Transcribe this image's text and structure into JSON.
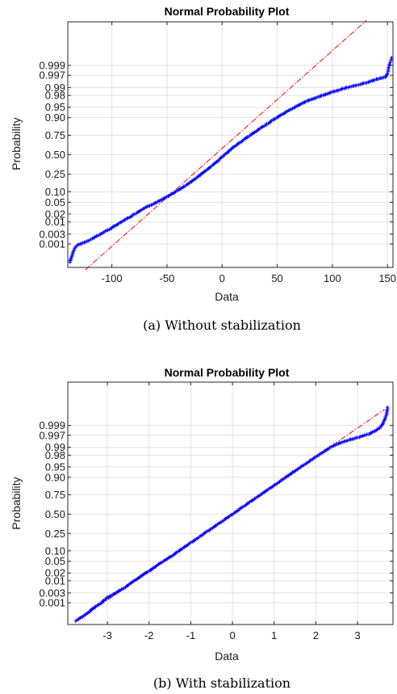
{
  "figures": [
    {
      "caption": "(a) Without stabilization",
      "chart_data": {
        "type": "scatter",
        "title": "Normal Probability Plot",
        "xlabel": "Data",
        "ylabel": "Probability",
        "xlim": [
          -140,
          155
        ],
        "x_ticks": [
          -100,
          -50,
          0,
          50,
          100,
          150
        ],
        "x_tick_labels": [
          "-100",
          "-50",
          "0",
          "50",
          "100",
          "150"
        ],
        "y_ticks": [
          0.001,
          0.003,
          0.01,
          0.02,
          0.05,
          0.1,
          0.25,
          0.5,
          0.75,
          0.9,
          0.95,
          0.98,
          0.99,
          0.997,
          0.999
        ],
        "y_tick_labels": [
          "0.001",
          "0.003",
          "0.01",
          "0.02",
          "0.05",
          "0.10",
          "0.25",
          "0.50",
          "0.75",
          "0.90",
          "0.95",
          "0.98",
          "0.99",
          "0.997",
          "0.999"
        ],
        "grid": true,
        "reference_line": {
          "x": [
            -124,
            131
          ],
          "y_z": [
            -3.98,
            4.65
          ]
        },
        "series": [
          {
            "points": [
              [
                -138,
                0.0001
              ],
              [
                -135,
                0.0004
              ],
              [
                -133,
                0.0007
              ],
              [
                -131,
                0.0009
              ],
              [
                -125,
                0.0012
              ],
              [
                -120,
                0.0016
              ],
              [
                -113,
                0.0025
              ],
              [
                -106,
                0.004
              ],
              [
                -98,
                0.0065
              ],
              [
                -90,
                0.011
              ],
              [
                -82,
                0.017
              ],
              [
                -75,
                0.025
              ],
              [
                -68,
                0.036
              ],
              [
                -58,
                0.052
              ],
              [
                -48,
                0.08
              ],
              [
                -40,
                0.11
              ],
              [
                -30,
                0.16
              ],
              [
                -20,
                0.24
              ],
              [
                -10,
                0.34
              ],
              [
                0,
                0.47
              ],
              [
                10,
                0.6
              ],
              [
                22,
                0.72
              ],
              [
                35,
                0.82
              ],
              [
                45,
                0.88
              ],
              [
                55,
                0.92
              ],
              [
                65,
                0.948
              ],
              [
                75,
                0.966
              ],
              [
                88,
                0.978
              ],
              [
                100,
                0.985
              ],
              [
                112,
                0.9895
              ],
              [
                125,
                0.9925
              ],
              [
                135,
                0.9945
              ],
              [
                142,
                0.9958
              ],
              [
                148,
                0.9964
              ],
              [
                150,
                0.9975
              ],
              [
                151,
                0.9985
              ],
              [
                152,
                0.9991
              ],
              [
                153,
                0.9994
              ],
              [
                154,
                0.9996
              ]
            ]
          }
        ]
      }
    },
    {
      "caption": "(b) With stabilization",
      "chart_data": {
        "type": "scatter",
        "title": "Normal Probability Plot",
        "xlabel": "Data",
        "ylabel": "Probability",
        "xlim": [
          -3.95,
          3.85
        ],
        "x_ticks": [
          -3,
          -2,
          -1,
          0,
          1,
          2,
          3
        ],
        "x_tick_labels": [
          "-3",
          "-2",
          "-1",
          "0",
          "1",
          "2",
          "3"
        ],
        "y_ticks": [
          0.001,
          0.003,
          0.01,
          0.02,
          0.05,
          0.1,
          0.25,
          0.5,
          0.75,
          0.9,
          0.95,
          0.98,
          0.99,
          0.997,
          0.999
        ],
        "y_tick_labels": [
          "0.001",
          "0.003",
          "0.01",
          "0.02",
          "0.05",
          "0.10",
          "0.25",
          "0.50",
          "0.75",
          "0.90",
          "0.95",
          "0.98",
          "0.99",
          "0.997",
          "0.999"
        ],
        "grid": true,
        "reference_line": {
          "x": [
            -3.78,
            3.65
          ],
          "y_z": [
            -3.78,
            3.65
          ]
        },
        "series": [
          {
            "points": [
              [
                -3.75,
                0.0001
              ],
              [
                -3.45,
                0.0003
              ],
              [
                -3.3,
                0.0006
              ],
              [
                -3.15,
                0.001
              ],
              [
                -3.0,
                0.0018
              ],
              [
                -2.8,
                0.003
              ],
              [
                -2.6,
                0.005
              ],
              [
                -2.4,
                0.009
              ],
              [
                -2.2,
                0.015
              ],
              [
                -2.0,
                0.024
              ],
              [
                -1.8,
                0.037
              ],
              [
                -1.5,
                0.066
              ],
              [
                -1.2,
                0.115
              ],
              [
                -0.9,
                0.184
              ],
              [
                -0.6,
                0.274
              ],
              [
                -0.3,
                0.382
              ],
              [
                0.0,
                0.5
              ],
              [
                0.3,
                0.618
              ],
              [
                0.6,
                0.726
              ],
              [
                0.9,
                0.816
              ],
              [
                1.2,
                0.885
              ],
              [
                1.5,
                0.934
              ],
              [
                1.8,
                0.964
              ],
              [
                2.1,
                0.982
              ],
              [
                2.4,
                0.991
              ],
              [
                2.7,
                0.9945
              ],
              [
                3.0,
                0.9962
              ],
              [
                3.3,
                0.9975
              ],
              [
                3.5,
                0.9985
              ],
              [
                3.6,
                0.9991
              ],
              [
                3.65,
                0.9995
              ],
              [
                3.7,
                0.99975
              ],
              [
                3.72,
                0.9999
              ]
            ]
          }
        ]
      }
    }
  ]
}
